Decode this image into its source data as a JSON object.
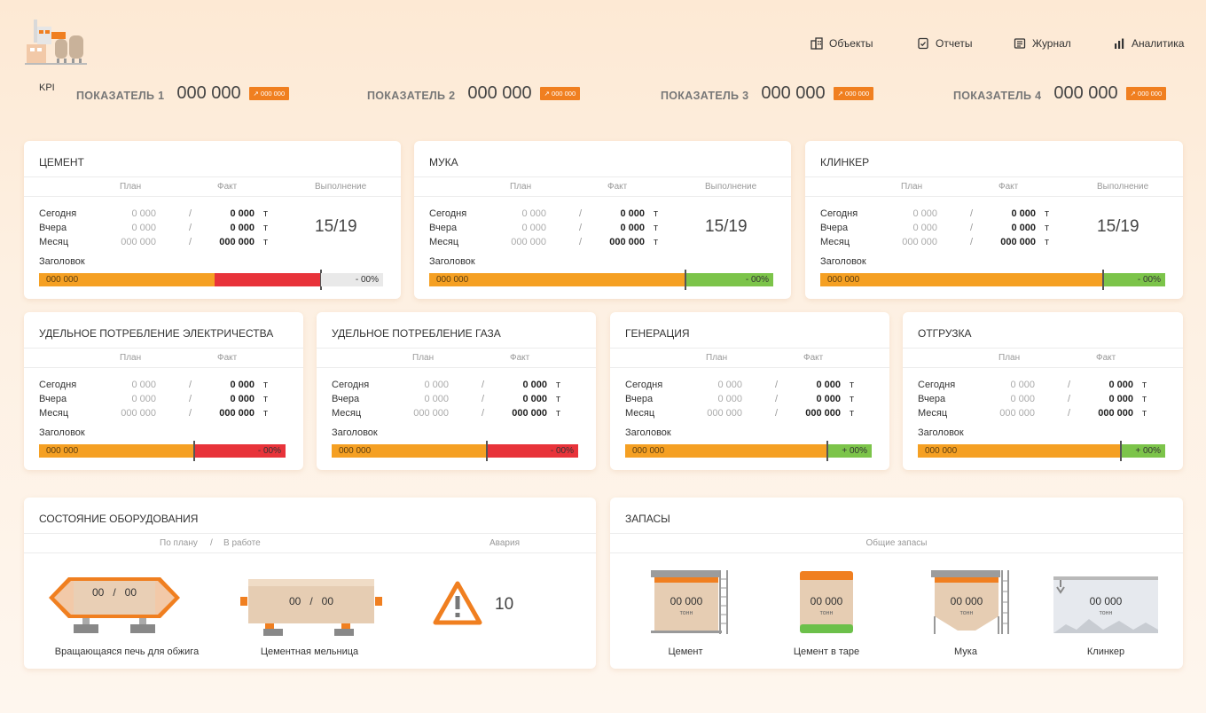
{
  "nav": [
    {
      "label": "Объекты",
      "icon": "buildings-icon"
    },
    {
      "label": "Отчеты",
      "icon": "report-icon"
    },
    {
      "label": "Журнал",
      "icon": "journal-icon"
    },
    {
      "label": "Аналитика",
      "icon": "analytics-icon"
    }
  ],
  "kpi_tag": "KPI",
  "kpis": [
    {
      "label": "ПОКАЗАТЕЛЬ 1",
      "value": "000 000",
      "badge": "↗ 000 000"
    },
    {
      "label": "ПОКАЗАТЕЛЬ 2",
      "value": "000 000",
      "badge": "↗ 000 000"
    },
    {
      "label": "ПОКАЗАТЕЛЬ 3",
      "value": "000 000",
      "badge": "↗ 000 000"
    },
    {
      "label": "ПОКАЗАТЕЛЬ 4",
      "value": "000 000",
      "badge": "↗ 000 000"
    }
  ],
  "columns": {
    "plan": "План",
    "fact": "Факт",
    "done": "Выполнение"
  },
  "rows": {
    "today": "Сегодня",
    "yesterday": "Вчера",
    "month": "Месяц"
  },
  "cells": {
    "plan": "0 000",
    "plan_month": "000 000",
    "fact": "0 000",
    "fact_month": "000 000",
    "slash": "/",
    "unit": "т"
  },
  "bar_heading": "Заголовок",
  "bar_value": "000 000",
  "cards_top": [
    {
      "title": "ЦЕМЕНТ",
      "done": "15/19",
      "bar_text": "- 00%",
      "status": "red",
      "fill": 0.51,
      "over": 0.31
    },
    {
      "title": "МУКА",
      "done": "15/19",
      "bar_text": "- 00%",
      "status": "green",
      "fill": 0.745,
      "over": 0.255
    },
    {
      "title": "КЛИНКЕР",
      "done": "15/19",
      "bar_text": "- 00%",
      "status": "green",
      "fill": 0.82,
      "over": 0.18
    }
  ],
  "cards_mid": [
    {
      "title": "УДЕЛЬНОЕ ПОТРЕБЛЕНИЕ ЭЛЕКТРИЧЕСТВА",
      "bar_text": "- 00%",
      "status": "red",
      "fill": 0.63
    },
    {
      "title": "УДЕЛЬНОЕ ПОТРЕБЛЕНИЕ ГАЗА",
      "bar_text": "- 00%",
      "status": "red",
      "fill": 0.63
    },
    {
      "title": "ГЕНЕРАЦИЯ",
      "bar_text": "+ 00%",
      "status": "green",
      "fill": 0.82
    },
    {
      "title": "ОТГРУЗКА",
      "bar_text": "+ 00%",
      "status": "green",
      "fill": 0.82
    }
  ],
  "equipment": {
    "title": "СОСТОЯНИЕ ОБОРУДОВАНИЯ",
    "sub_plan": "По плану",
    "sub_slash": "/",
    "sub_work": "В работе",
    "sub_alarm": "Авария",
    "kiln": {
      "value": "00   /   00",
      "label": "Вращающаяся печь для обжига"
    },
    "mill": {
      "value": "00   /   00",
      "label": "Цементная мельница"
    },
    "alarm_count": "10"
  },
  "stocks": {
    "title": "ЗАПАСЫ",
    "subtitle": "Общие запасы",
    "items": [
      {
        "value": "00 000",
        "unit": "тонн",
        "label": "Цемент"
      },
      {
        "value": "00 000",
        "unit": "тонн",
        "label": "Цемент в таре"
      },
      {
        "value": "00 000",
        "unit": "тонн",
        "label": "Мука"
      },
      {
        "value": "00 000",
        "unit": "тонн",
        "label": "Клинкер"
      }
    ]
  },
  "colors": {
    "accent": "#f07f20",
    "orange": "#f5a023",
    "red": "#e8333a",
    "green": "#7cc44a"
  }
}
